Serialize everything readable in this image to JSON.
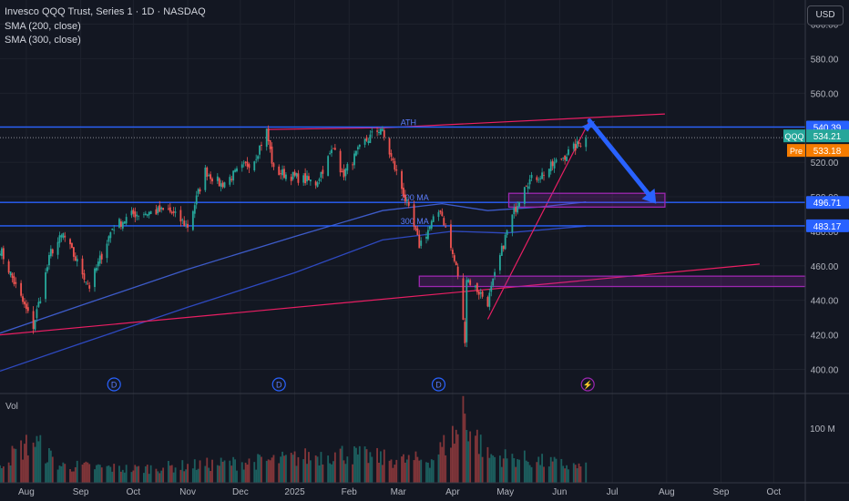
{
  "header": {
    "title": "Invesco QQQ Trust, Series 1 · 1D · NASDAQ",
    "indicators": [
      "SMA (200, close)",
      "SMA (300, close)"
    ],
    "volume_label": "Vol",
    "currency_button": "USD"
  },
  "colors": {
    "background": "#131722",
    "up": "#26a69a",
    "down": "#ef5350",
    "level_line": "#2962ff",
    "sma200": "#3d5bc9",
    "sma300": "#2e49c0",
    "trendline": "#e91e63",
    "zone": "#9c27b0",
    "arrow": "#2962ff",
    "qqq_tag": "#26a69a",
    "pre_tag": "#f57c00"
  },
  "chart_data": {
    "type": "candlestick",
    "x_axis": {
      "ticks": [
        "Aug",
        "Sep",
        "Oct",
        "Nov",
        "Dec",
        "2025",
        "Feb",
        "Mar",
        "Apr",
        "May",
        "Jun",
        "Jul",
        "Aug",
        "Sep",
        "Oct"
      ],
      "tick_dates": [
        "2024-08-01",
        "2024-09-01",
        "2024-10-01",
        "2024-11-01",
        "2024-12-01",
        "2025-01-01",
        "2025-02-01",
        "2025-03-01",
        "2025-04-01",
        "2025-05-01",
        "2025-06-01",
        "2025-07-01",
        "2025-08-01",
        "2025-09-01",
        "2025-10-01"
      ],
      "range": [
        "2024-07-17",
        "2025-10-19"
      ]
    },
    "y_axis": {
      "ticks": [
        400,
        420,
        440,
        460,
        480,
        500,
        520,
        540,
        560,
        580,
        600
      ],
      "range": [
        386,
        614
      ],
      "unit": "USD"
    },
    "price_levels": [
      {
        "value": 540.39,
        "label": "540.39"
      },
      {
        "value": 496.71,
        "label": "496.71"
      },
      {
        "value": 483.17,
        "label": "483.17"
      }
    ],
    "price_tags": [
      {
        "name": "QQQ",
        "value": 534.21,
        "label": "534.21"
      },
      {
        "name": "Pre",
        "value": 533.18,
        "label": "533.18"
      }
    ],
    "level_annotations": [
      {
        "text": "ATH",
        "date": "2025-02-22",
        "value": 540.39
      },
      {
        "text": "200 MA",
        "date": "2025-02-22",
        "value": 496.71
      },
      {
        "text": "300 MA",
        "date": "2025-02-22",
        "value": 483.17
      }
    ],
    "candle_anchors": [
      [
        "2024-07-17",
        470
      ],
      [
        "2024-07-26",
        448
      ],
      [
        "2024-08-05",
        425
      ],
      [
        "2024-08-15",
        468
      ],
      [
        "2024-08-22",
        478
      ],
      [
        "2024-09-06",
        448
      ],
      [
        "2024-09-19",
        482
      ],
      [
        "2024-10-01",
        490
      ],
      [
        "2024-10-21",
        492
      ],
      [
        "2024-11-01",
        483
      ],
      [
        "2024-11-11",
        515
      ],
      [
        "2024-11-20",
        507
      ],
      [
        "2024-12-09",
        522
      ],
      [
        "2024-12-16",
        538
      ],
      [
        "2024-12-20",
        515
      ],
      [
        "2025-01-13",
        508
      ],
      [
        "2025-01-24",
        530
      ],
      [
        "2025-01-28",
        512
      ],
      [
        "2025-02-10",
        532
      ],
      [
        "2025-02-19",
        540
      ],
      [
        "2025-03-03",
        505
      ],
      [
        "2025-03-13",
        472
      ],
      [
        "2025-03-25",
        493
      ],
      [
        "2025-04-04",
        455
      ],
      [
        "2025-04-08",
        418
      ],
      [
        "2025-04-09",
        453
      ],
      [
        "2025-04-21",
        439
      ],
      [
        "2025-05-02",
        480
      ],
      [
        "2025-05-12",
        508
      ],
      [
        "2025-05-22",
        513
      ],
      [
        "2025-05-30",
        520
      ],
      [
        "2025-06-09",
        528
      ],
      [
        "2025-06-16",
        534
      ]
    ],
    "sma200": [
      [
        "2024-07-17",
        421
      ],
      [
        "2024-09-01",
        437
      ],
      [
        "2024-11-01",
        458
      ],
      [
        "2025-01-01",
        477
      ],
      [
        "2025-02-20",
        492
      ],
      [
        "2025-03-26",
        496
      ],
      [
        "2025-04-21",
        492
      ],
      [
        "2025-05-20",
        494
      ],
      [
        "2025-06-16",
        497
      ]
    ],
    "sma300": [
      [
        "2024-07-17",
        399
      ],
      [
        "2024-09-01",
        415
      ],
      [
        "2024-11-01",
        436
      ],
      [
        "2025-01-01",
        456
      ],
      [
        "2025-02-20",
        475
      ],
      [
        "2025-04-01",
        480
      ],
      [
        "2025-05-01",
        479
      ],
      [
        "2025-06-16",
        483
      ]
    ],
    "trendlines": [
      {
        "points": [
          [
            "2024-07-17",
            420
          ],
          [
            "2025-09-23",
            461
          ]
        ]
      },
      {
        "points": [
          [
            "2024-12-16",
            539
          ],
          [
            "2025-02-22",
            540
          ],
          [
            "2025-07-31",
            548
          ]
        ]
      },
      {
        "points": [
          [
            "2025-04-21",
            429
          ],
          [
            "2025-06-18",
            544
          ]
        ]
      }
    ],
    "zones": [
      {
        "from": "2025-05-03",
        "to": "2025-07-31",
        "low": 494,
        "high": 502
      },
      {
        "from": "2025-03-13",
        "to": "2025-10-19",
        "low": 448,
        "high": 454
      }
    ],
    "arrows": [
      {
        "from": [
          "2025-06-18",
          544
        ],
        "to": [
          "2025-07-26",
          496
        ]
      }
    ],
    "event_markers": [
      {
        "label": "D",
        "date": "2024-09-20"
      },
      {
        "label": "D",
        "date": "2024-12-23"
      },
      {
        "label": "D",
        "date": "2025-03-24"
      },
      {
        "label": "⚡",
        "date": "2025-06-17"
      }
    ],
    "volume": {
      "label": "Vol",
      "ticks": [
        "100 M"
      ],
      "tick_values": [
        100
      ],
      "unit": "M",
      "max": 150,
      "anchors": [
        [
          "2024-07-17",
          40
        ],
        [
          "2024-08-05",
          85
        ],
        [
          "2024-08-20",
          35
        ],
        [
          "2024-10-01",
          28
        ],
        [
          "2024-12-20",
          45
        ],
        [
          "2025-01-27",
          60
        ],
        [
          "2025-03-03",
          45
        ],
        [
          "2025-03-20",
          48
        ],
        [
          "2025-04-04",
          105
        ],
        [
          "2025-04-07",
          155
        ],
        [
          "2025-04-09",
          125
        ],
        [
          "2025-04-21",
          55
        ],
        [
          "2025-05-12",
          48
        ],
        [
          "2025-06-16",
          30
        ]
      ]
    }
  }
}
